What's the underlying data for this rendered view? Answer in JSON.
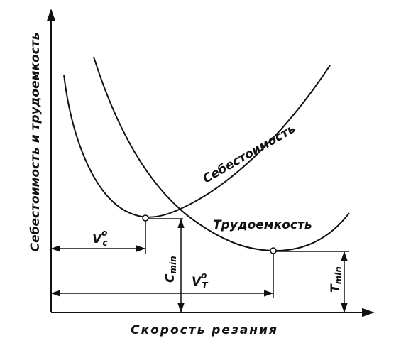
{
  "axes": {
    "y_label": "Себестоимость и трудоемкость",
    "x_label": "Скорость резания"
  },
  "curves": [
    {
      "label": "Себестоимость"
    },
    {
      "label": "Трудоемкость"
    }
  ],
  "annotations": {
    "vc": {
      "symbol": "V",
      "sub": "c",
      "sup": "o"
    },
    "cmin": {
      "symbol": "C",
      "sub": "min"
    },
    "vt": {
      "symbol": "V",
      "sub": "T",
      "sup": "o"
    },
    "tmin": {
      "symbol": "T",
      "sub": "min"
    }
  }
}
